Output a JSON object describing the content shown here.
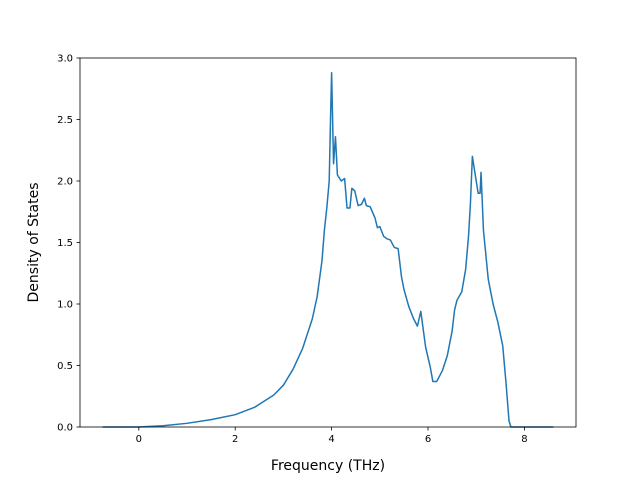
{
  "chart_data": {
    "type": "line",
    "title": "",
    "xlabel": "Frequency (THz)",
    "ylabel": "Density of States",
    "xlim": [
      -1.22,
      9.07
    ],
    "ylim": [
      0.0,
      3.0
    ],
    "xticks": [
      0,
      2,
      4,
      6,
      8
    ],
    "yticks": [
      0.0,
      0.5,
      1.0,
      1.5,
      2.0,
      2.5,
      3.0
    ],
    "xtick_labels": [
      "0",
      "2",
      "4",
      "6",
      "8"
    ],
    "ytick_labels": [
      "0.0",
      "0.5",
      "1.0",
      "1.5",
      "2.0",
      "2.5",
      "3.0"
    ],
    "grid": false,
    "line_color": "#1f77b4",
    "series": [
      {
        "x": [
          -0.75,
          -0.4,
          0.0,
          0.5,
          1.0,
          1.5,
          2.0,
          2.4,
          2.8,
          3.0,
          3.2,
          3.4,
          3.6,
          3.7,
          3.8,
          3.85,
          3.9,
          3.95,
          3.98,
          4.0,
          4.04,
          4.08,
          4.12,
          4.2,
          4.27,
          4.32,
          4.38,
          4.42,
          4.48,
          4.55,
          4.62,
          4.68,
          4.72,
          4.8,
          4.9,
          4.95,
          5.0,
          5.08,
          5.15,
          5.22,
          5.3,
          5.38,
          5.45,
          5.5,
          5.6,
          5.7,
          5.78,
          5.85,
          5.95,
          6.05,
          6.1,
          6.18,
          6.3,
          6.4,
          6.5,
          6.55,
          6.6,
          6.7,
          6.78,
          6.84,
          6.88,
          6.92,
          6.98,
          7.04,
          7.08,
          7.1,
          7.15,
          7.25,
          7.35,
          7.45,
          7.55,
          7.62,
          7.68,
          7.72,
          7.76,
          7.85,
          8.2,
          8.6
        ],
        "y": [
          0.0,
          0.0,
          0.0,
          0.01,
          0.03,
          0.06,
          0.1,
          0.16,
          0.26,
          0.34,
          0.47,
          0.64,
          0.88,
          1.06,
          1.35,
          1.6,
          1.78,
          2.0,
          2.55,
          2.88,
          2.14,
          2.36,
          2.05,
          2.0,
          2.02,
          1.78,
          1.78,
          1.94,
          1.92,
          1.8,
          1.81,
          1.86,
          1.8,
          1.79,
          1.7,
          1.62,
          1.63,
          1.55,
          1.53,
          1.52,
          1.46,
          1.45,
          1.22,
          1.12,
          0.98,
          0.88,
          0.82,
          0.94,
          0.65,
          0.48,
          0.37,
          0.37,
          0.46,
          0.58,
          0.78,
          0.95,
          1.03,
          1.1,
          1.28,
          1.55,
          1.82,
          2.2,
          2.05,
          1.9,
          1.9,
          2.07,
          1.6,
          1.2,
          1.0,
          0.85,
          0.66,
          0.35,
          0.05,
          0.0,
          0.0,
          0.0,
          0.0,
          0.0
        ]
      }
    ]
  }
}
